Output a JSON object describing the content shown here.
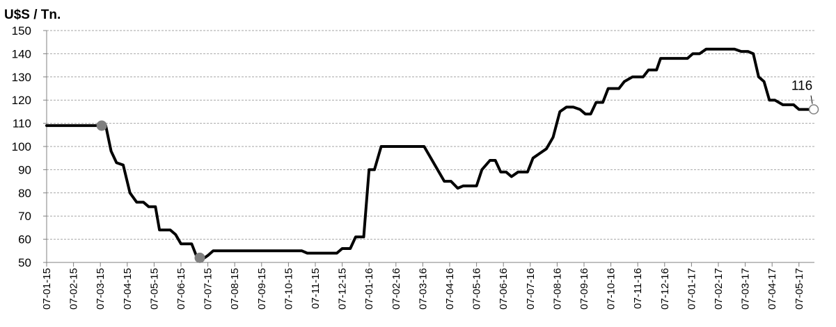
{
  "chart_data": {
    "type": "line",
    "title": "",
    "ylabel": "U$S / Tn.",
    "xlabel": "",
    "ylim": [
      50,
      150
    ],
    "yticks": [
      "50",
      "60",
      "70",
      "80",
      "90",
      "100",
      "110",
      "120",
      "130",
      "140",
      "150"
    ],
    "grid": "horizontal-dashed",
    "categories": [
      "07-01-15",
      "07-02-15",
      "07-03-15",
      "07-04-15",
      "07-05-15",
      "07-06-15",
      "07-07-15",
      "07-08-15",
      "07-09-15",
      "07-10-15",
      "07-11-15",
      "07-12-15",
      "07-01-16",
      "07-02-16",
      "07-03-16",
      "07-04-16",
      "07-05-16",
      "07-06-16",
      "07-07-16",
      "07-08-16",
      "07-09-16",
      "07-10-16",
      "07-11-16",
      "07-12-16",
      "07-01-17",
      "07-02-17",
      "07-03-17",
      "07-04-17",
      "07-05-17"
    ],
    "series": [
      {
        "color": "#000000",
        "points": [
          [
            0,
            109
          ],
          [
            2,
            109
          ],
          [
            2.2,
            109
          ],
          [
            2.4,
            98
          ],
          [
            2.6,
            93
          ],
          [
            2.85,
            92
          ],
          [
            3.1,
            80
          ],
          [
            3.35,
            76
          ],
          [
            3.6,
            76
          ],
          [
            3.8,
            74
          ],
          [
            4.05,
            74
          ],
          [
            4.2,
            64
          ],
          [
            4.6,
            64
          ],
          [
            4.8,
            62
          ],
          [
            5.0,
            58
          ],
          [
            5.4,
            58
          ],
          [
            5.6,
            52
          ],
          [
            5.75,
            51
          ],
          [
            6.0,
            53
          ],
          [
            6.2,
            55
          ],
          [
            7.0,
            55
          ],
          [
            8.0,
            55
          ],
          [
            9.0,
            55
          ],
          [
            9.5,
            55
          ],
          [
            9.7,
            54
          ],
          [
            10.0,
            54
          ],
          [
            10.5,
            54
          ],
          [
            10.8,
            54
          ],
          [
            11.0,
            56
          ],
          [
            11.3,
            56
          ],
          [
            11.5,
            61
          ],
          [
            11.8,
            61
          ],
          [
            12.0,
            90
          ],
          [
            12.2,
            90
          ],
          [
            12.45,
            100
          ],
          [
            13.0,
            100
          ],
          [
            13.5,
            100
          ],
          [
            14.05,
            100
          ],
          [
            14.3,
            95
          ],
          [
            14.55,
            90
          ],
          [
            14.8,
            85
          ],
          [
            15.05,
            85
          ],
          [
            15.3,
            82
          ],
          [
            15.5,
            83
          ],
          [
            15.8,
            83
          ],
          [
            16.0,
            83
          ],
          [
            16.2,
            90
          ],
          [
            16.5,
            94
          ],
          [
            16.7,
            94
          ],
          [
            16.9,
            89
          ],
          [
            17.1,
            89
          ],
          [
            17.3,
            87
          ],
          [
            17.55,
            89
          ],
          [
            17.9,
            89
          ],
          [
            18.1,
            95
          ],
          [
            18.35,
            97
          ],
          [
            18.6,
            99
          ],
          [
            18.85,
            104
          ],
          [
            19.1,
            115
          ],
          [
            19.35,
            117
          ],
          [
            19.6,
            117
          ],
          [
            19.85,
            116
          ],
          [
            20.05,
            114
          ],
          [
            20.25,
            114
          ],
          [
            20.45,
            119
          ],
          [
            20.7,
            119
          ],
          [
            20.9,
            125
          ],
          [
            21.3,
            125
          ],
          [
            21.5,
            128
          ],
          [
            21.8,
            130
          ],
          [
            22.2,
            130
          ],
          [
            22.4,
            133
          ],
          [
            22.7,
            133
          ],
          [
            22.85,
            138
          ],
          [
            23.35,
            138
          ],
          [
            23.85,
            138
          ],
          [
            24.05,
            140
          ],
          [
            24.3,
            140
          ],
          [
            24.55,
            142
          ],
          [
            25.3,
            142
          ],
          [
            25.6,
            142
          ],
          [
            25.85,
            141
          ],
          [
            26.1,
            141
          ],
          [
            26.3,
            140
          ],
          [
            26.5,
            130
          ],
          [
            26.7,
            128
          ],
          [
            26.9,
            120
          ],
          [
            27.1,
            120
          ],
          [
            27.4,
            118
          ],
          [
            27.8,
            118
          ],
          [
            28.0,
            116
          ],
          [
            28.3,
            116
          ],
          [
            28.55,
            116
          ]
        ]
      }
    ],
    "markers": [
      {
        "x": 2.05,
        "y": 109,
        "style": "filled-gray"
      },
      {
        "x": 5.7,
        "y": 52,
        "style": "filled-gray"
      },
      {
        "x": 28.55,
        "y": 116,
        "style": "hollow"
      }
    ],
    "annotations": [
      {
        "text": "116",
        "x": 28.55,
        "y": 116
      }
    ]
  }
}
